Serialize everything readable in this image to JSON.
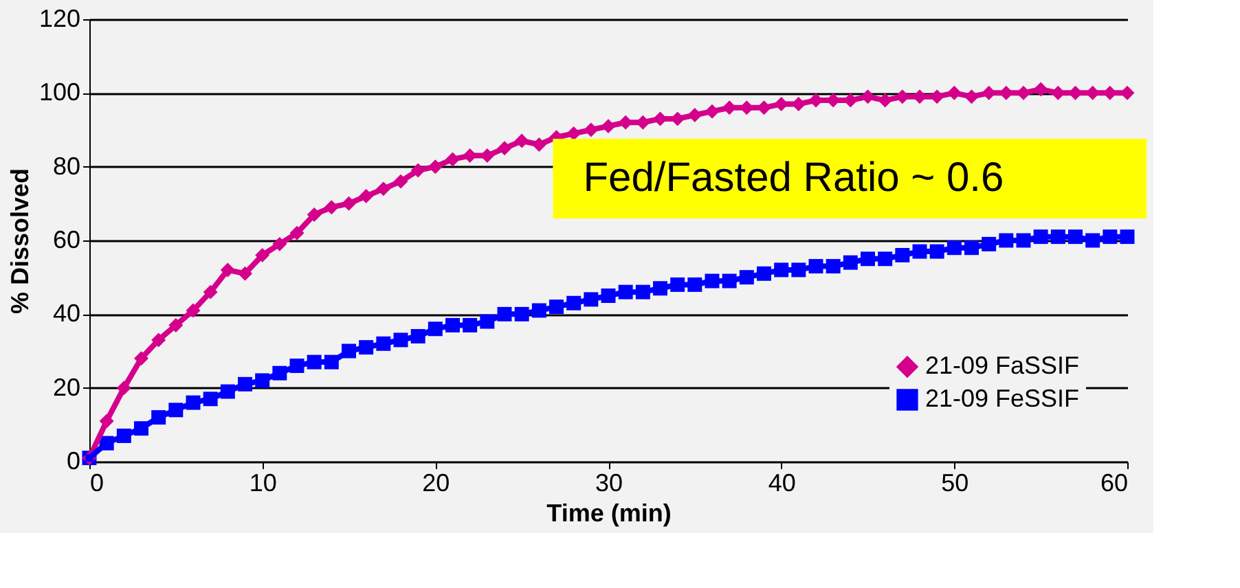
{
  "chart_data": {
    "type": "line",
    "xlabel": "Time (min)",
    "ylabel": "% Dissolved",
    "x": [
      0,
      1,
      2,
      3,
      4,
      5,
      6,
      7,
      8,
      9,
      10,
      11,
      12,
      13,
      14,
      15,
      16,
      17,
      18,
      19,
      20,
      21,
      22,
      23,
      24,
      25,
      26,
      27,
      28,
      29,
      30,
      31,
      32,
      33,
      34,
      35,
      36,
      37,
      38,
      39,
      40,
      41,
      42,
      43,
      44,
      45,
      46,
      47,
      48,
      49,
      50,
      51,
      52,
      53,
      54,
      55,
      56,
      57,
      58,
      59,
      60
    ],
    "series": [
      {
        "name": "21-09 FaSSIF",
        "color": "#d4008c",
        "marker": "diamond",
        "values": [
          1,
          11,
          20,
          28,
          33,
          37,
          41,
          46,
          52,
          51,
          56,
          59,
          62,
          67,
          69,
          70,
          72,
          74,
          76,
          79,
          80,
          82,
          83,
          83,
          85,
          87,
          86,
          88,
          89,
          90,
          91,
          92,
          92,
          93,
          93,
          94,
          95,
          96,
          96,
          96,
          97,
          97,
          98,
          98,
          98,
          99,
          98,
          99,
          99,
          99,
          100,
          99,
          100,
          100,
          100,
          101,
          100,
          100,
          100,
          100,
          100
        ]
      },
      {
        "name": "21-09 FeSSIF",
        "color": "#0000ff",
        "marker": "square",
        "values": [
          1,
          5,
          7,
          9,
          12,
          14,
          16,
          17,
          19,
          21,
          22,
          24,
          26,
          27,
          27,
          30,
          31,
          32,
          33,
          34,
          36,
          37,
          37,
          38,
          40,
          40,
          41,
          42,
          43,
          44,
          45,
          46,
          46,
          47,
          48,
          48,
          49,
          49,
          50,
          51,
          52,
          52,
          53,
          53,
          54,
          55,
          55,
          56,
          57,
          57,
          58,
          58,
          59,
          60,
          60,
          61,
          61,
          61,
          60,
          61,
          61
        ]
      }
    ],
    "xlim": [
      0,
      60
    ],
    "xticks": [
      0,
      10,
      20,
      30,
      40,
      50,
      60
    ],
    "ylim": [
      0,
      120
    ],
    "yticks": [
      0,
      20,
      40,
      60,
      80,
      100,
      120
    ],
    "grid": "y",
    "legend": "bottom right",
    "line_style": "solid",
    "annotations": [
      "Fed/Fasted Ratio ~ 0.6"
    ]
  }
}
